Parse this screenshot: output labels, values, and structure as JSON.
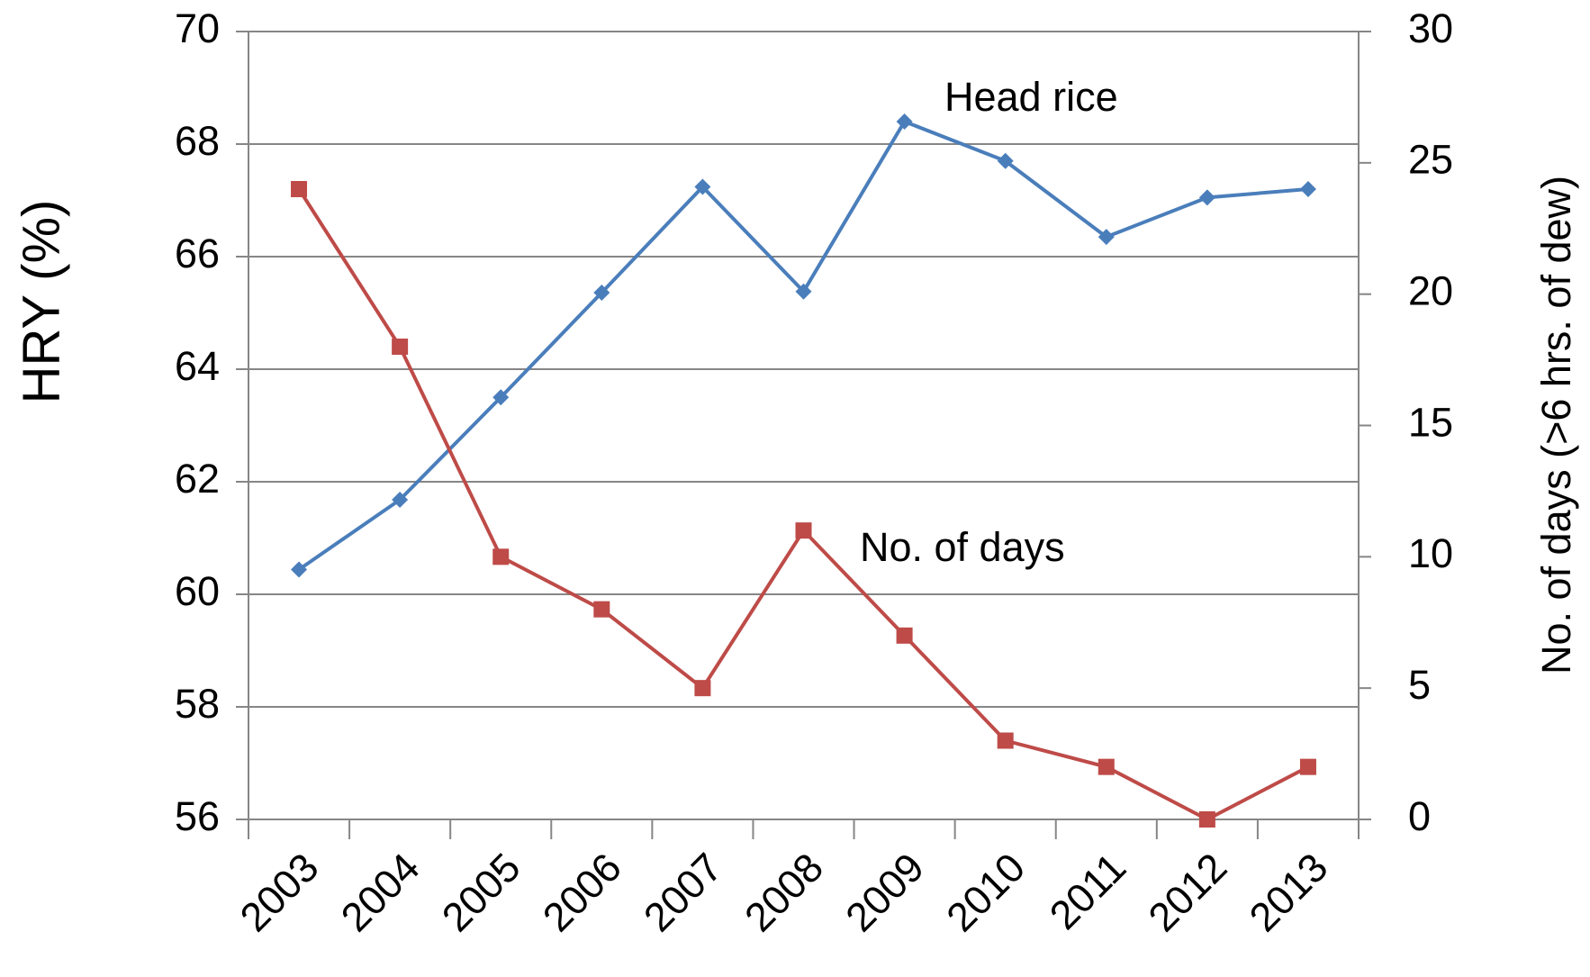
{
  "chart_data": {
    "type": "line",
    "y_label": "HRY (%)",
    "y2_label": "No. of days (>6 hrs. of dew)",
    "categories": [
      "2003",
      "2004",
      "2005",
      "2006",
      "2007",
      "2008",
      "2009",
      "2010",
      "2011",
      "2012",
      "2013"
    ],
    "series": [
      {
        "name": "Head rice",
        "color": "#4a7ebb",
        "marker": "diamond",
        "values": [
          60.44,
          61.68,
          63.5,
          65.36,
          67.24,
          65.38,
          68.4,
          67.7,
          66.35,
          67.05,
          67.2
        ]
      },
      {
        "name": "No. of days",
        "color": "#be4b48",
        "marker": "square",
        "axis": "y2",
        "values": [
          24,
          18,
          10,
          8,
          5,
          11,
          7,
          3,
          2,
          0,
          2
        ]
      }
    ],
    "ylim": [
      56,
      70
    ],
    "yticks": [
      56,
      58,
      60,
      62,
      64,
      66,
      68,
      70
    ],
    "y2lim": [
      0,
      30
    ],
    "y2ticks": [
      0,
      5,
      10,
      15,
      20,
      25,
      30
    ],
    "grid": true
  }
}
